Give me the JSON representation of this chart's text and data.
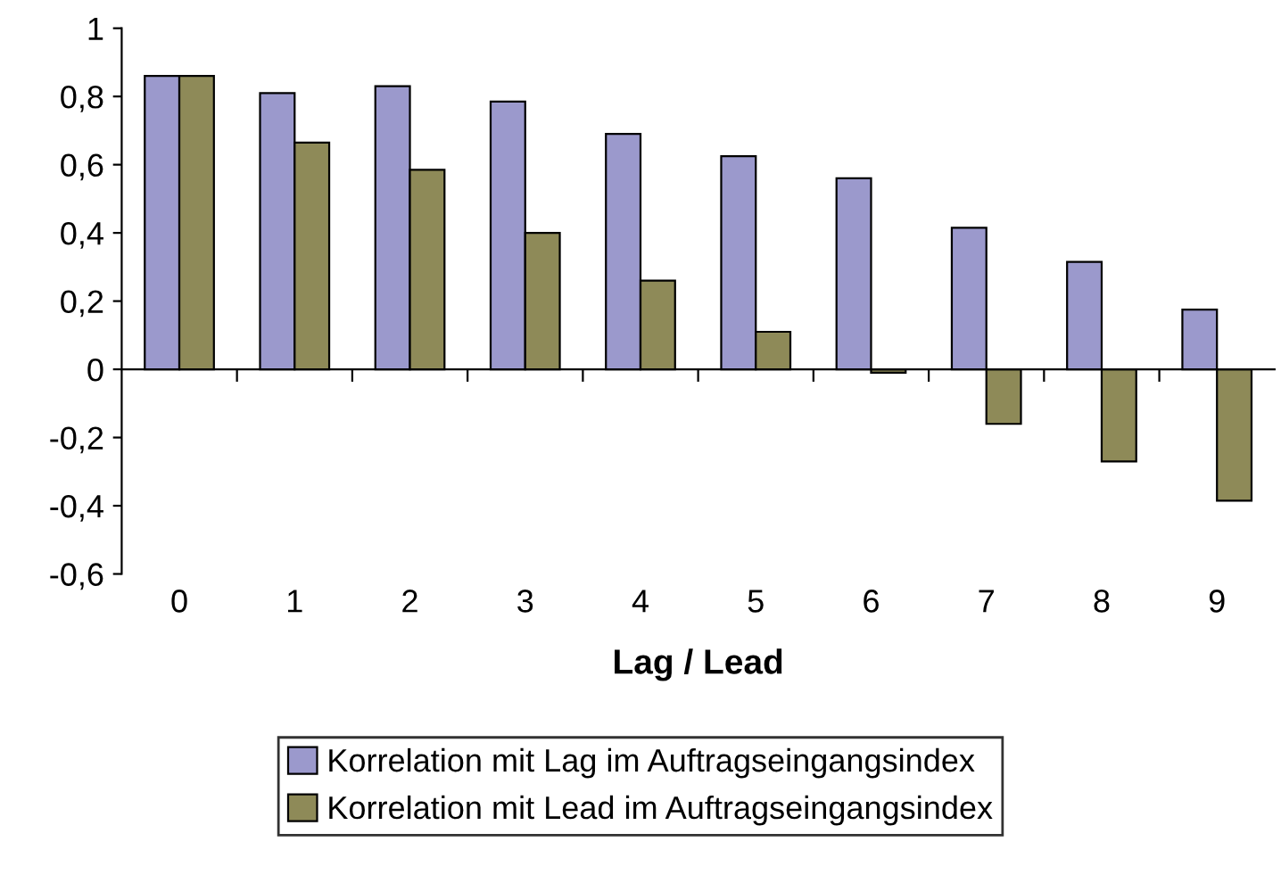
{
  "chart_data": {
    "type": "bar",
    "xlabel": "Lag / Lead",
    "categories": [
      "0",
      "1",
      "2",
      "3",
      "4",
      "5",
      "6",
      "7",
      "8",
      "9"
    ],
    "series": [
      {
        "name": "Korrelation mit Lag im Auftragseingangsindex",
        "color": "#9b99cc",
        "values": [
          0.86,
          0.81,
          0.83,
          0.785,
          0.69,
          0.625,
          0.56,
          0.415,
          0.315,
          0.175
        ]
      },
      {
        "name": "Korrelation mit Lead im Auftragseingangsindex",
        "color": "#8e8a58",
        "values": [
          0.86,
          0.665,
          0.585,
          0.4,
          0.26,
          0.11,
          -0.01,
          -0.16,
          -0.27,
          -0.385
        ]
      }
    ],
    "ylim": [
      -0.6,
      1
    ],
    "yticks": [
      {
        "value": -0.6,
        "label": "-0,6"
      },
      {
        "value": -0.4,
        "label": "-0,4"
      },
      {
        "value": -0.2,
        "label": "-0,2"
      },
      0,
      {
        "value": 0.2,
        "label": "0,2"
      },
      {
        "value": 0.4,
        "label": "0,4"
      },
      {
        "value": 0.6,
        "label": "0,6"
      },
      {
        "value": 0.8,
        "label": "0,8"
      },
      1
    ],
    "legend": "bottom"
  }
}
